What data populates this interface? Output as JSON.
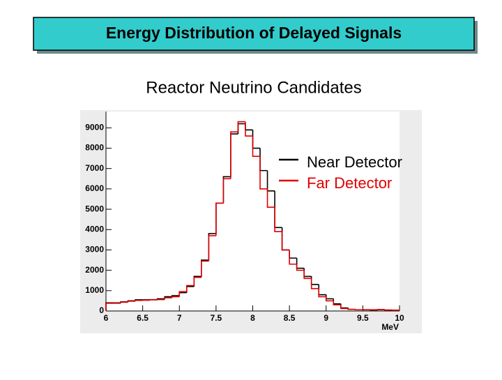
{
  "header": {
    "title": "Energy Distribution of Delayed Signals"
  },
  "chart_data": {
    "type": "histogram",
    "title": "Reactor Neutrino Candidates",
    "x_label": "MeV",
    "bins": [
      6,
      6.1,
      6.2,
      6.3,
      6.4,
      6.5,
      6.6,
      6.7,
      6.8,
      6.9,
      7,
      7.1,
      7.2,
      7.3,
      7.4,
      7.5,
      7.6,
      7.7,
      7.8,
      7.9,
      8,
      8.1,
      8.2,
      8.3,
      8.4,
      8.5,
      8.6,
      8.7,
      8.8,
      8.9,
      9,
      9.1,
      9.2,
      9.3,
      9.4,
      9.5,
      9.6,
      9.7,
      9.8,
      9.9,
      10
    ],
    "series": [
      {
        "name": "Near Detector",
        "color": "#000000",
        "values": [
          400,
          400,
          450,
          500,
          550,
          550,
          550,
          600,
          700,
          750,
          900,
          1200,
          1700,
          2500,
          3800,
          5300,
          6600,
          8700,
          9200,
          8900,
          8000,
          6900,
          5900,
          4100,
          3000,
          2600,
          2100,
          1700,
          1300,
          800,
          600,
          350,
          150,
          80,
          60,
          60,
          50,
          60,
          40,
          40
        ]
      },
      {
        "name": "Far Detector",
        "color": "#e00000",
        "values": [
          380,
          380,
          430,
          480,
          520,
          530,
          560,
          560,
          650,
          700,
          950,
          1250,
          1650,
          2450,
          3700,
          5300,
          6500,
          8800,
          9300,
          8600,
          7600,
          6000,
          5100,
          3900,
          3000,
          2300,
          2000,
          1600,
          1100,
          700,
          500,
          300,
          120,
          80,
          60,
          60,
          60,
          70,
          50,
          40
        ]
      }
    ],
    "xlim": [
      6,
      10
    ],
    "xticks": [
      6,
      6.5,
      7,
      7.5,
      8,
      8.5,
      9,
      9.5,
      10
    ],
    "ylim": [
      0,
      9800
    ],
    "yticks": [
      0,
      1000,
      2000,
      3000,
      4000,
      5000,
      6000,
      7000,
      8000,
      9000
    ]
  }
}
